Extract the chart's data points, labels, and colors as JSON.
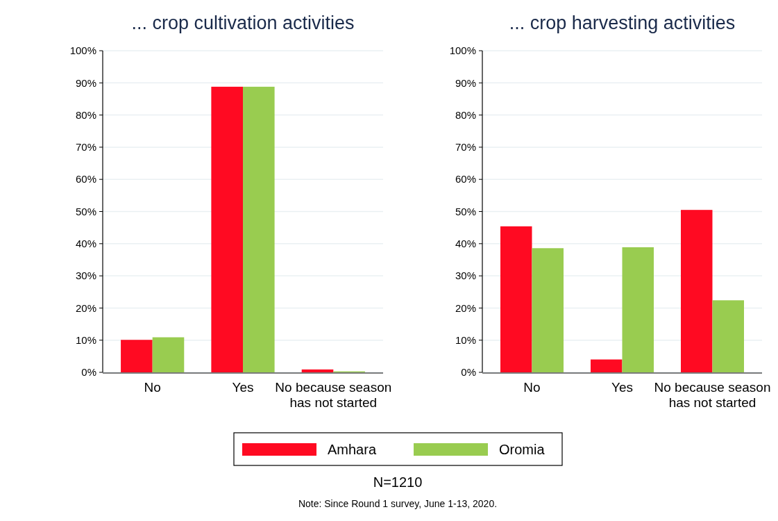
{
  "chart_data": [
    {
      "type": "bar",
      "title": "... crop cultivation activities",
      "categories": [
        "No",
        "Yes",
        "No because season has not started"
      ],
      "series": [
        {
          "name": "Amhara",
          "color": "#ff0a22",
          "values": [
            10.1,
            88.8,
            0.9
          ]
        },
        {
          "name": "Oromia",
          "color": "#99cc50",
          "values": [
            10.9,
            88.8,
            0.3
          ]
        }
      ],
      "ylim": [
        0,
        100
      ],
      "yticks": [
        {
          "value": 0,
          "label": "0%"
        },
        {
          "value": 10,
          "label": "10%"
        },
        {
          "value": 20,
          "label": "20%"
        },
        {
          "value": 30,
          "label": "30%"
        },
        {
          "value": 40,
          "label": "40%"
        },
        {
          "value": 50,
          "label": "50%"
        },
        {
          "value": 60,
          "label": "60%"
        },
        {
          "value": 70,
          "label": "70%"
        },
        {
          "value": 80,
          "label": "80%"
        },
        {
          "value": 90,
          "label": "90%"
        },
        {
          "value": 100,
          "label": "100%"
        }
      ],
      "grid": "y",
      "legend": "bottom",
      "annotations": [
        "N=1210",
        "Note: Since Round 1 survey, June 1-13, 2020."
      ]
    },
    {
      "type": "bar",
      "title": "... crop harvesting activities",
      "categories": [
        "No",
        "Yes",
        "No because season has not started"
      ],
      "series": [
        {
          "color": "#ff0a22",
          "values": [
            45.4,
            4.0,
            50.5
          ]
        },
        {
          "color": "#99cc50",
          "values": [
            38.6,
            38.9,
            22.4
          ]
        }
      ],
      "ylim": [
        0,
        100
      ],
      "yticks": [
        {
          "value": 0,
          "label": "0%"
        },
        {
          "value": 10,
          "label": "10%"
        },
        {
          "value": 20,
          "label": "20%"
        },
        {
          "value": 30,
          "label": "30%"
        },
        {
          "value": 40,
          "label": "40%"
        },
        {
          "value": 50,
          "label": "50%"
        },
        {
          "value": 60,
          "label": "60%"
        },
        {
          "value": 70,
          "label": "70%"
        },
        {
          "value": 80,
          "label": "80%"
        },
        {
          "value": 90,
          "label": "90%"
        },
        {
          "value": 100,
          "label": "100%"
        }
      ],
      "grid": "y"
    }
  ]
}
